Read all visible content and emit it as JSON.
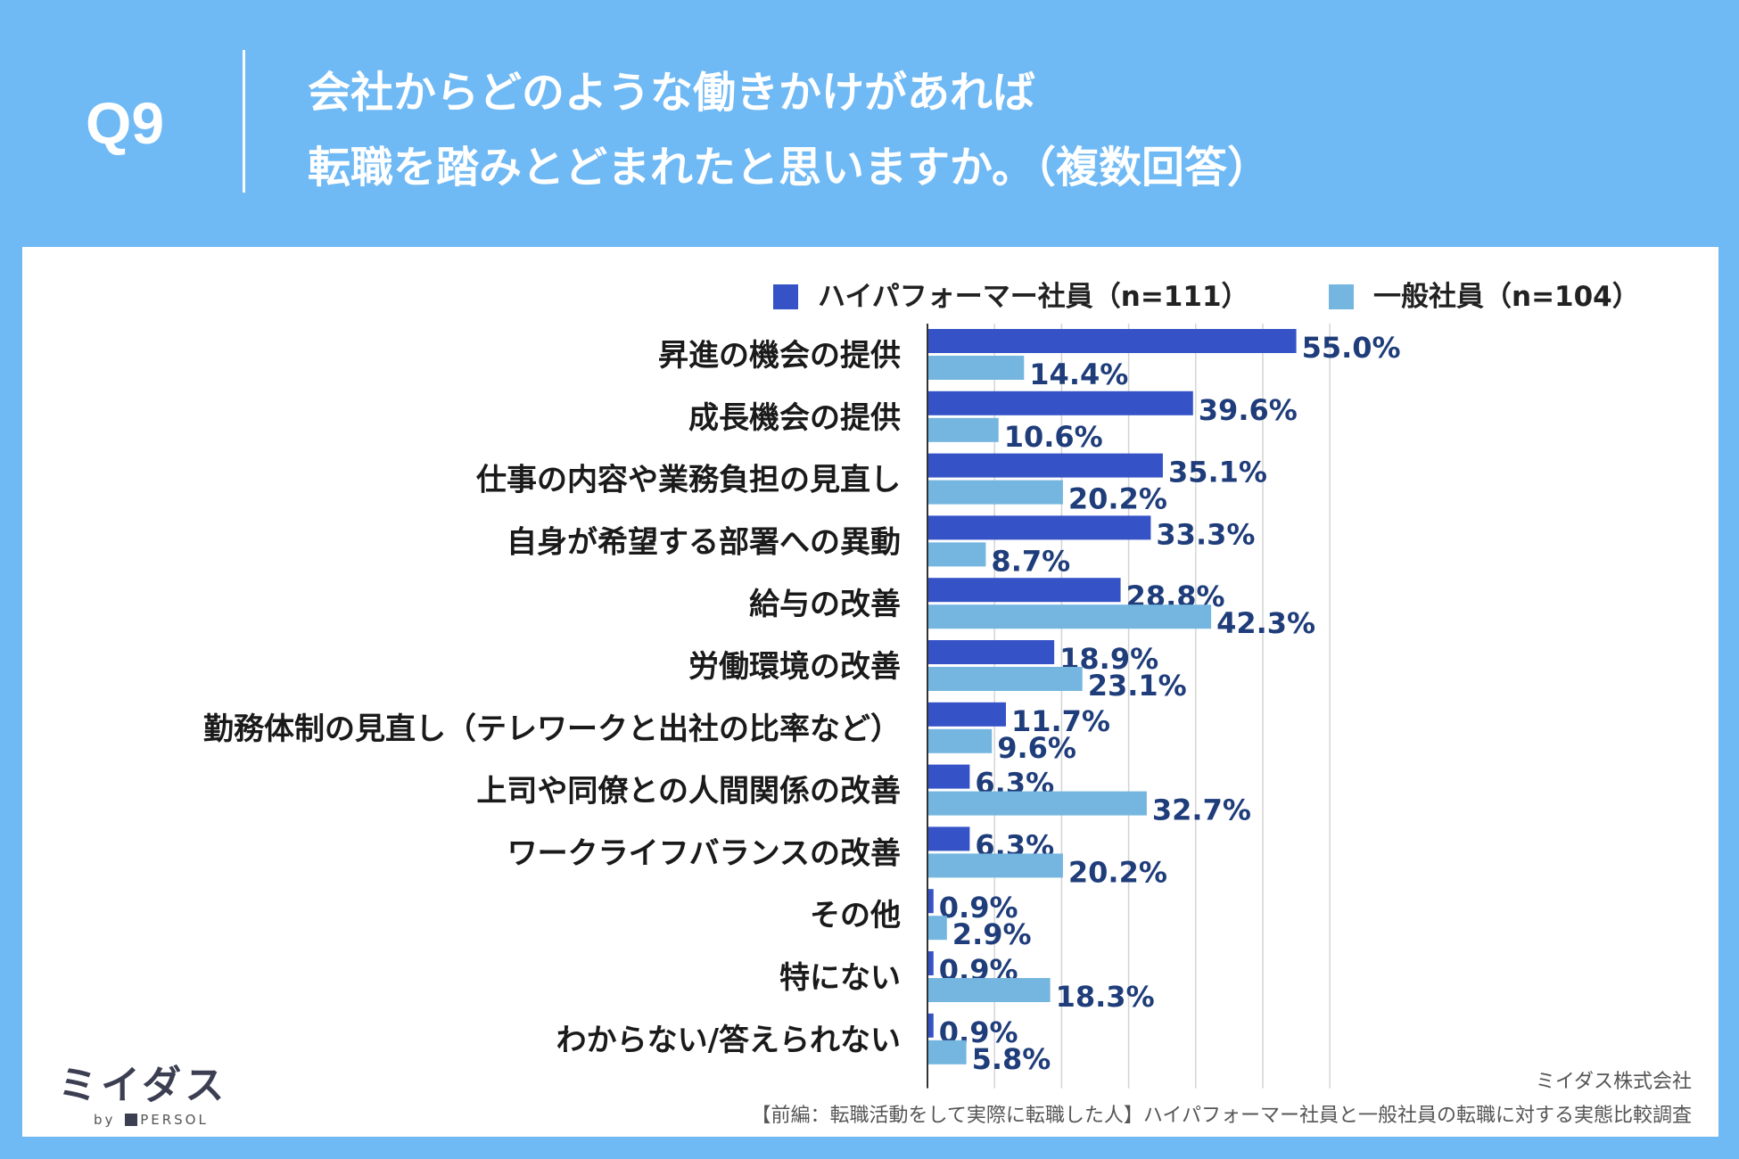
{
  "header": {
    "question_number": "Q9",
    "title_line1": "会社からどのような働きかけがあれば",
    "title_line2": "転職を踏みとどまれたと思いますか。（複数回答）"
  },
  "legend": {
    "series1": "ハイパフォーマー社員（n=111）",
    "series2": "一般社員（n=104）"
  },
  "chart_data": {
    "type": "bar",
    "orientation": "horizontal",
    "categories": [
      "昇進の機会の提供",
      "成長機会の提供",
      "仕事の内容や業務負担の見直し",
      "自身が希望する部署への異動",
      "給与の改善",
      "労働環境の改善",
      "勤務体制の見直し（テレワークと出社の比率など）",
      "上司や同僚との人間関係の改善",
      "ワークライフバランスの改善",
      "その他",
      "特にない",
      "わからない/答えられない"
    ],
    "series": [
      {
        "name": "ハイパフォーマー社員（n=111）",
        "color": "#3553c7",
        "values": [
          55.0,
          39.6,
          35.1,
          33.3,
          28.8,
          18.9,
          11.7,
          6.3,
          6.3,
          0.9,
          0.9,
          0.9
        ],
        "labels": [
          "55.0%",
          "39.6%",
          "35.1%",
          "33.3%",
          "28.8%",
          "18.9%",
          "11.7%",
          "6.3%",
          "6.3%",
          "0.9%",
          "0.9%",
          "0.9%"
        ]
      },
      {
        "name": "一般社員（n=104）",
        "color": "#74b6df",
        "values": [
          14.4,
          10.6,
          20.2,
          8.7,
          42.3,
          23.1,
          9.6,
          32.7,
          20.2,
          2.9,
          18.3,
          5.8
        ],
        "labels": [
          "14.4%",
          "10.6%",
          "20.2%",
          "8.7%",
          "42.3%",
          "23.1%",
          "9.6%",
          "32.7%",
          "20.2%",
          "2.9%",
          "18.3%",
          "5.8%"
        ]
      }
    ],
    "xlim": [
      0,
      60
    ],
    "grid": true,
    "legend_position": "top-right"
  },
  "footer": {
    "logo_text": "ミイダス",
    "logo_sub_by": "by",
    "logo_sub_brand": "PERSOL",
    "company": "ミイダス株式会社",
    "source": "【前編：転職活動をして実際に転職した人】ハイパフォーマー社員と一般社員の転職に対する実態比較調査"
  }
}
